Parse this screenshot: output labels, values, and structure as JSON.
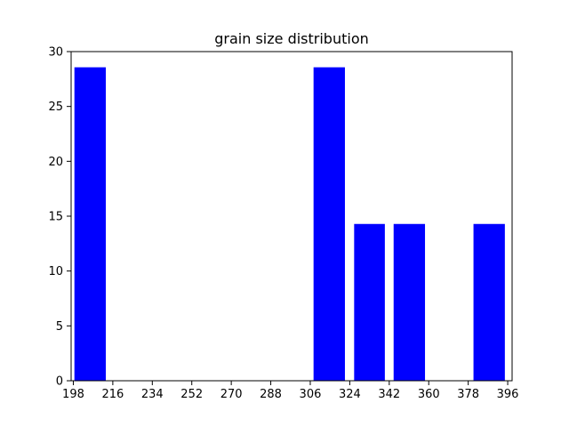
{
  "chart_data": {
    "type": "bar",
    "title": "grain size distribution",
    "xlabel": "",
    "ylabel": "",
    "bar_color": "#0000ff",
    "bars": [
      {
        "x_start": 198.5,
        "x_end": 212.8,
        "value": 28.57
      },
      {
        "x_start": 307.5,
        "x_end": 321.8,
        "value": 28.57
      },
      {
        "x_start": 326.0,
        "x_end": 340.0,
        "value": 14.29
      },
      {
        "x_start": 344.0,
        "x_end": 358.3,
        "value": 14.29
      },
      {
        "x_start": 380.4,
        "x_end": 394.7,
        "value": 14.29
      }
    ],
    "xlim": [
      197.0,
      398.0
    ],
    "ylim": [
      0,
      30
    ],
    "x_ticks": [
      198,
      216,
      234,
      252,
      270,
      288,
      306,
      324,
      342,
      360,
      378,
      396
    ],
    "y_ticks": [
      0,
      5,
      10,
      15,
      20,
      25,
      30
    ],
    "grid": false
  }
}
